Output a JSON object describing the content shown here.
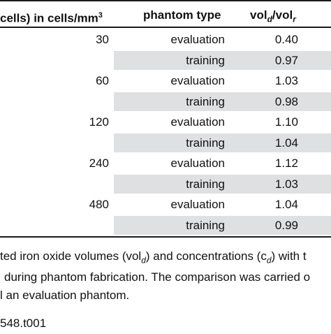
{
  "table": {
    "headers": {
      "conc": "cells) in cells/mm",
      "conc_sup": "3",
      "type": "phantom type",
      "vol_prefix": "vol",
      "vol_sub1": "d",
      "vol_mid": "/vol",
      "vol_sub2": "r"
    },
    "rows": [
      {
        "conc": "30",
        "type": "evaluation",
        "ratio": "0.40"
      },
      {
        "conc": "",
        "type": "training",
        "ratio": "0.97"
      },
      {
        "conc": "60",
        "type": "evaluation",
        "ratio": "1.03"
      },
      {
        "conc": "",
        "type": "training",
        "ratio": "0.98"
      },
      {
        "conc": "120",
        "type": "evaluation",
        "ratio": "1.10"
      },
      {
        "conc": "",
        "type": "training",
        "ratio": "1.04"
      },
      {
        "conc": "240",
        "type": "evaluation",
        "ratio": "1.12"
      },
      {
        "conc": "",
        "type": "training",
        "ratio": "1.03"
      },
      {
        "conc": "480",
        "type": "evaluation",
        "ratio": "1.04"
      },
      {
        "conc": "",
        "type": "training",
        "ratio": "0.99"
      }
    ]
  },
  "caption": {
    "line1_a": "ted iron oxide volumes (vol",
    "line1_sub": "d",
    "line1_b": ") and concentrations (c",
    "line1_sub2": "d",
    "line1_c": ") with t",
    "line2": "during phantom fabrication. The comparison was carried o",
    "line3": "l an evaluation phantom."
  },
  "doi_suffix": "548.t001"
}
